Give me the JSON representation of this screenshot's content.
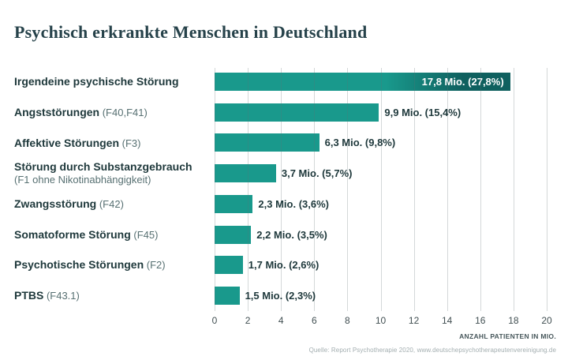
{
  "page": {
    "title": "Psychisch erkrankte Menschen in Deutschland"
  },
  "chart_data": {
    "type": "bar",
    "orientation": "horizontal",
    "title": "Psychisch erkrankte Menschen in Deutschland",
    "categories": [
      "Irgendeine psychische Störung",
      "Angststörungen (F40,F41)",
      "Affektive Störungen (F3)",
      "Störung durch Substanzgebrauch (F1 ohne Nikotinabhängigkeit)",
      "Zwangsstörung (F42)",
      "Somatoforme Störung (F45)",
      "Psychotische Störungen (F2)",
      "PTBS (F43.1)"
    ],
    "values": [
      17.8,
      9.9,
      6.3,
      3.7,
      2.3,
      2.2,
      1.7,
      1.5
    ],
    "rows": [
      {
        "name": "Irgendeine psychische Störung",
        "code": "",
        "note": "",
        "value": 17.8,
        "value_label": "17,8 Mio. (27,8%)",
        "label_inside": true
      },
      {
        "name": "Angststörungen",
        "code": "(F40,F41)",
        "note": "",
        "value": 9.9,
        "value_label": "9,9 Mio. (15,4%)",
        "label_inside": false
      },
      {
        "name": "Affektive Störungen",
        "code": "(F3)",
        "note": "",
        "value": 6.3,
        "value_label": "6,3 Mio. (9,8%)",
        "label_inside": false
      },
      {
        "name": "Störung durch Substanzgebrauch",
        "code": "",
        "note": "(F1 ohne Nikotinabhängigkeit)",
        "value": 3.7,
        "value_label": "3,7 Mio. (5,7%)",
        "label_inside": false
      },
      {
        "name": "Zwangsstörung",
        "code": "(F42)",
        "note": "",
        "value": 2.3,
        "value_label": "2,3 Mio. (3,6%)",
        "label_inside": false
      },
      {
        "name": "Somatoforme Störung",
        "code": "(F45)",
        "note": "",
        "value": 2.2,
        "value_label": "2,2 Mio. (3,5%)",
        "label_inside": false
      },
      {
        "name": "Psychotische Störungen",
        "code": "(F2)",
        "note": "",
        "value": 1.7,
        "value_label": "1,7 Mio. (2,6%)",
        "label_inside": false
      },
      {
        "name": "PTBS",
        "code": "(F43.1)",
        "note": "",
        "value": 1.5,
        "value_label": "1,5 Mio. (2,3%)",
        "label_inside": false
      }
    ],
    "xlabel": "ANZAHL PATIENTEN IN MIO.",
    "xlim": [
      0,
      20
    ],
    "xticks": [
      0,
      2,
      4,
      6,
      8,
      10,
      12,
      14,
      16,
      18,
      20
    ],
    "grid": true,
    "legend": "none",
    "source": "Quelle: Report Psychotherapie 2020, www.deutschepsychotherapeutenvereinigung.de",
    "colors": {
      "bar": "#19998C",
      "bar_dark_end": "#0F605F",
      "value_text_inside": "#FFFFFF",
      "value_text_outside": "#1E383B",
      "category_text": "#1E383B",
      "code_text": "#577072",
      "grid": "#D4D9DA",
      "tick_text": "#414F52",
      "axis_label_text": "#46565A",
      "source_text": "#A3AEB0",
      "title_text": "#26424A",
      "background": "#FFFFFF"
    }
  },
  "footer": {
    "x_axis_label": "ANZAHL PATIENTEN IN MIO.",
    "source": "Quelle: Report Psychotherapie 2020, www.deutschepsychotherapeutenvereinigung.de"
  }
}
